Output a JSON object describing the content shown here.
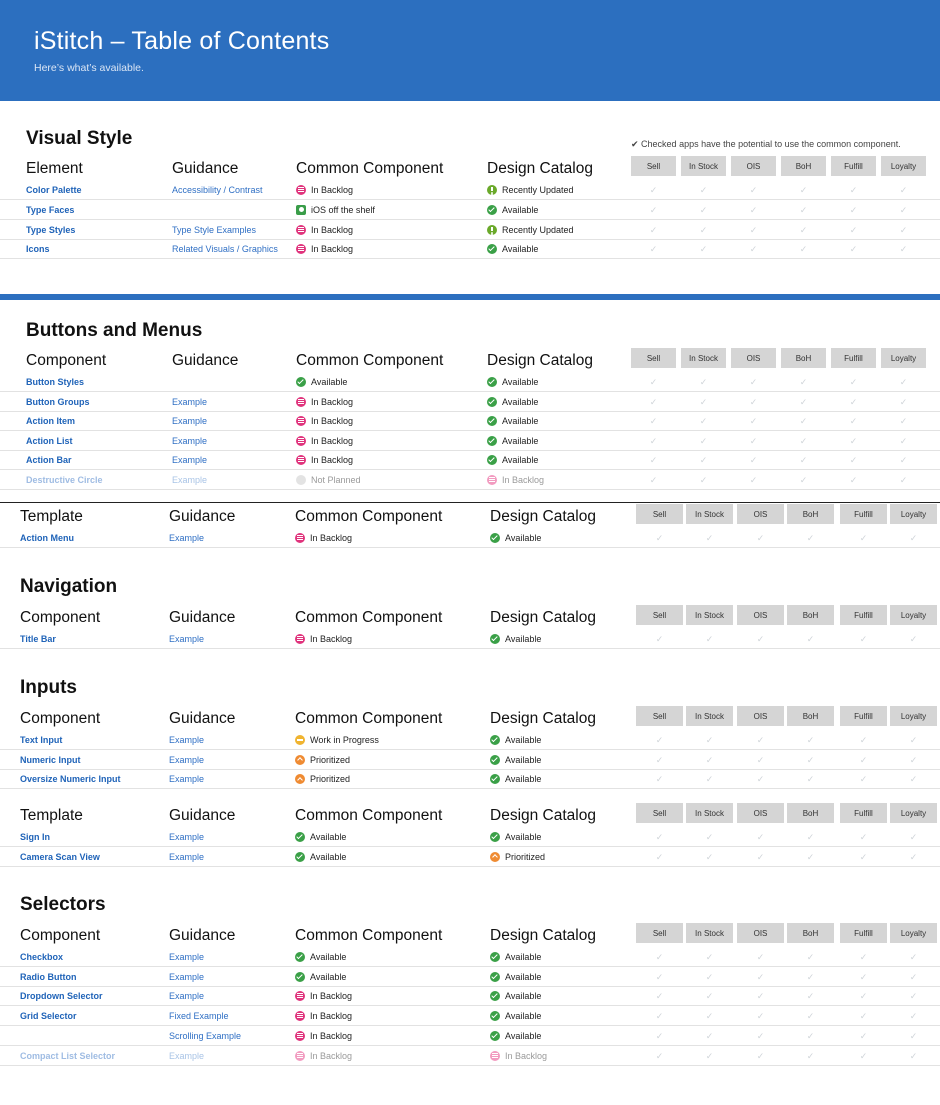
{
  "header": {
    "title": "iStitch – Table of Contents",
    "subtitle": "Here’s what’s available."
  },
  "note": "✔ Checked apps have the potential to use the common component.",
  "apps": [
    "Sell",
    "In Stock",
    "OIS",
    "BoH",
    "Fulfill",
    "Loyalty"
  ],
  "status_icons": {
    "In Backlog": "backlog",
    "Available": "available",
    "Recently Updated": "updated",
    "iOS off the shelf": "ios",
    "Not Planned": "notplanned",
    "Work in Progress": "wip",
    "Prioritized": "prio"
  },
  "colors": {
    "header_bg": "#2c6fbf",
    "link": "#1f63b8",
    "backlog": "#e0337c",
    "available": "#3aa047",
    "updated": "#6aa92a",
    "wip": "#f0b430",
    "prioritized": "#ef8b32"
  },
  "sections": [
    {
      "title": "Visual Style",
      "tables": [
        {
          "headers": [
            "Element",
            "Guidance",
            "Common Component",
            "Design Catalog"
          ],
          "rows": [
            {
              "name": "Color Palette",
              "guidance": "Accessibility / Contrast",
              "common": "In Backlog",
              "design": "Recently Updated"
            },
            {
              "name": "Type Faces",
              "guidance": "",
              "common": "iOS off the shelf",
              "design": "Available"
            },
            {
              "name": "Type Styles",
              "guidance": "Type Style Examples",
              "common": "In Backlog",
              "design": "Recently Updated"
            },
            {
              "name": "Icons",
              "guidance": "Related Visuals / Graphics",
              "common": "In Backlog",
              "design": "Available"
            }
          ]
        }
      ]
    },
    {
      "title": "Buttons and Menus",
      "tables": [
        {
          "headers": [
            "Component",
            "Guidance",
            "Common Component",
            "Design Catalog"
          ],
          "rows": [
            {
              "name": "Button Styles",
              "guidance": "",
              "common": "Available",
              "design": "Available"
            },
            {
              "name": "Button Groups",
              "guidance": "Example",
              "common": "In Backlog",
              "design": "Available"
            },
            {
              "name": "Action Item",
              "guidance": "Example",
              "common": "In Backlog",
              "design": "Available"
            },
            {
              "name": "Action List",
              "guidance": "Example",
              "common": "In Backlog",
              "design": "Available"
            },
            {
              "name": "Action Bar",
              "guidance": "Example",
              "common": "In Backlog",
              "design": "Available"
            },
            {
              "name": "Destructive Circle",
              "guidance": "Example",
              "common": "Not Planned",
              "design": "In Backlog",
              "dim": true
            }
          ]
        },
        {
          "headers": [
            "Template",
            "Guidance",
            "Common Component",
            "Design Catalog"
          ],
          "rows": [
            {
              "name": "Action Menu",
              "guidance": "Example",
              "common": "In Backlog",
              "design": "Available"
            }
          ]
        }
      ]
    },
    {
      "title": "Navigation",
      "tables": [
        {
          "headers": [
            "Component",
            "Guidance",
            "Common Component",
            "Design Catalog"
          ],
          "rows": [
            {
              "name": "Title Bar",
              "guidance": "Example",
              "common": "In Backlog",
              "design": "Available"
            }
          ]
        }
      ]
    },
    {
      "title": "Inputs",
      "tables": [
        {
          "headers": [
            "Component",
            "Guidance",
            "Common Component",
            "Design Catalog"
          ],
          "rows": [
            {
              "name": "Text Input",
              "guidance": "Example",
              "common": "Work in Progress",
              "design": "Available"
            },
            {
              "name": "Numeric Input",
              "guidance": "Example",
              "common": "Prioritized",
              "design": "Available"
            },
            {
              "name": "Oversize Numeric Input",
              "guidance": "Example",
              "common": "Prioritized",
              "design": "Available"
            }
          ]
        },
        {
          "headers": [
            "Template",
            "Guidance",
            "Common Component",
            "Design Catalog"
          ],
          "rows": [
            {
              "name": "Sign In",
              "guidance": "Example",
              "common": "Available",
              "design": "Available"
            },
            {
              "name": "Camera Scan View",
              "guidance": "Example",
              "common": "Available",
              "design": "Prioritized"
            }
          ]
        }
      ]
    },
    {
      "title": "Selectors",
      "tables": [
        {
          "headers": [
            "Component",
            "Guidance",
            "Common Component",
            "Design Catalog"
          ],
          "rows": [
            {
              "name": "Checkbox",
              "guidance": "Example",
              "common": "Available",
              "design": "Available"
            },
            {
              "name": "Radio Button",
              "guidance": "Example",
              "common": "Available",
              "design": "Available"
            },
            {
              "name": "Dropdown Selector",
              "guidance": "Example",
              "common": "In Backlog",
              "design": "Available"
            },
            {
              "name": "Grid Selector",
              "guidance": "Fixed Example",
              "common": "In Backlog",
              "design": "Available"
            },
            {
              "name": "",
              "guidance": "Scrolling Example",
              "common": "In Backlog",
              "design": "Available"
            },
            {
              "name": "Compact List Selector",
              "guidance": "Example",
              "common": "In Backlog",
              "design": "In Backlog",
              "dim": true
            }
          ]
        }
      ]
    }
  ]
}
